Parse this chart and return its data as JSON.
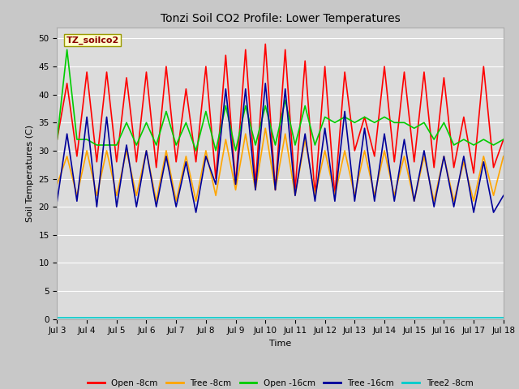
{
  "title": "Tonzi Soil CO2 Profile: Lower Temperatures",
  "ylabel": "Soil Temperatures (C)",
  "xlabel": "Time",
  "ylim": [
    0,
    52
  ],
  "yticks": [
    0,
    5,
    10,
    15,
    20,
    25,
    30,
    35,
    40,
    45,
    50
  ],
  "fig_bg": "#c8c8c8",
  "plot_bg": "#dcdcdc",
  "watermark_text": "TZ_soilco2",
  "watermark_color": "#8b0000",
  "watermark_bg": "#ffffcc",
  "watermark_edge": "#999900",
  "xtick_labels": [
    "Jul 3",
    "Jul 4",
    "Jul 5",
    "Jul 6",
    "Jul 7",
    "Jul 8",
    "Jul 9",
    "Jul 10",
    "Jul 11",
    "Jul 12",
    "Jul 13",
    "Jul 14",
    "Jul 15",
    "Jul 16",
    "Jul 17",
    "Jul 18"
  ],
  "series_order": [
    "open_8cm",
    "tree_8cm",
    "open_16cm",
    "tree_16cm",
    "tree2_8cm"
  ],
  "series": {
    "open_8cm": {
      "label": "Open -8cm",
      "color": "#ff0000",
      "lw": 1.2,
      "values": [
        32,
        42,
        29,
        44,
        28,
        44,
        28,
        43,
        28,
        44,
        27,
        45,
        28,
        41,
        28,
        45,
        25,
        47,
        24,
        48,
        24,
        49,
        23,
        48,
        23,
        46,
        22,
        45,
        22,
        44,
        30,
        36,
        29,
        45,
        28,
        44,
        28,
        44,
        27,
        43,
        27,
        36,
        26,
        45,
        27,
        32
      ]
    },
    "tree_8cm": {
      "label": "Tree -8cm",
      "color": "#ffa500",
      "lw": 1.2,
      "values": [
        24,
        29,
        22,
        30,
        22,
        30,
        22,
        30,
        22,
        30,
        21,
        30,
        21,
        29,
        21,
        30,
        22,
        32,
        23,
        33,
        23,
        34,
        23,
        33,
        22,
        32,
        22,
        30,
        22,
        30,
        22,
        30,
        22,
        30,
        22,
        29,
        21,
        29,
        21,
        29,
        21,
        28,
        21,
        29,
        22,
        29
      ]
    },
    "open_16cm": {
      "label": "Open -16cm",
      "color": "#00cc00",
      "lw": 1.2,
      "values": [
        32,
        48,
        32,
        32,
        31,
        31,
        31,
        35,
        31,
        35,
        31,
        37,
        31,
        35,
        30,
        37,
        30,
        38,
        30,
        38,
        31,
        38,
        31,
        39,
        31,
        38,
        31,
        36,
        35,
        36,
        35,
        36,
        35,
        36,
        35,
        35,
        34,
        35,
        32,
        35,
        31,
        32,
        31,
        32,
        31,
        32
      ]
    },
    "tree_16cm": {
      "label": "Tree -16cm",
      "color": "#000099",
      "lw": 1.2,
      "values": [
        21,
        33,
        21,
        36,
        20,
        36,
        20,
        31,
        20,
        30,
        20,
        29,
        20,
        28,
        19,
        29,
        24,
        41,
        24,
        41,
        23,
        42,
        23,
        41,
        22,
        33,
        21,
        34,
        21,
        37,
        21,
        34,
        21,
        33,
        21,
        32,
        21,
        30,
        20,
        29,
        20,
        29,
        19,
        28,
        19,
        22
      ]
    },
    "tree2_8cm": {
      "label": "Tree2 -8cm",
      "color": "#00cccc",
      "lw": 1.2,
      "values": [
        0.3,
        0.3,
        0.3,
        0.3,
        0.3,
        0.3,
        0.3,
        0.3,
        0.3,
        0.3,
        0.3,
        0.3,
        0.3,
        0.3,
        0.3,
        0.3,
        0.3,
        0.3,
        0.3,
        0.3,
        0.3,
        0.3,
        0.3,
        0.3,
        0.3,
        0.3,
        0.3,
        0.3,
        0.3,
        0.3,
        0.3,
        0.3,
        0.3,
        0.3,
        0.3,
        0.3,
        0.3,
        0.3,
        0.3,
        0.3,
        0.3,
        0.3,
        0.3,
        0.3,
        0.3,
        0.3
      ]
    }
  },
  "n_points": 46,
  "n_days": 15,
  "title_fontsize": 10,
  "axis_label_fontsize": 8,
  "tick_fontsize": 7.5,
  "legend_fontsize": 7.5
}
